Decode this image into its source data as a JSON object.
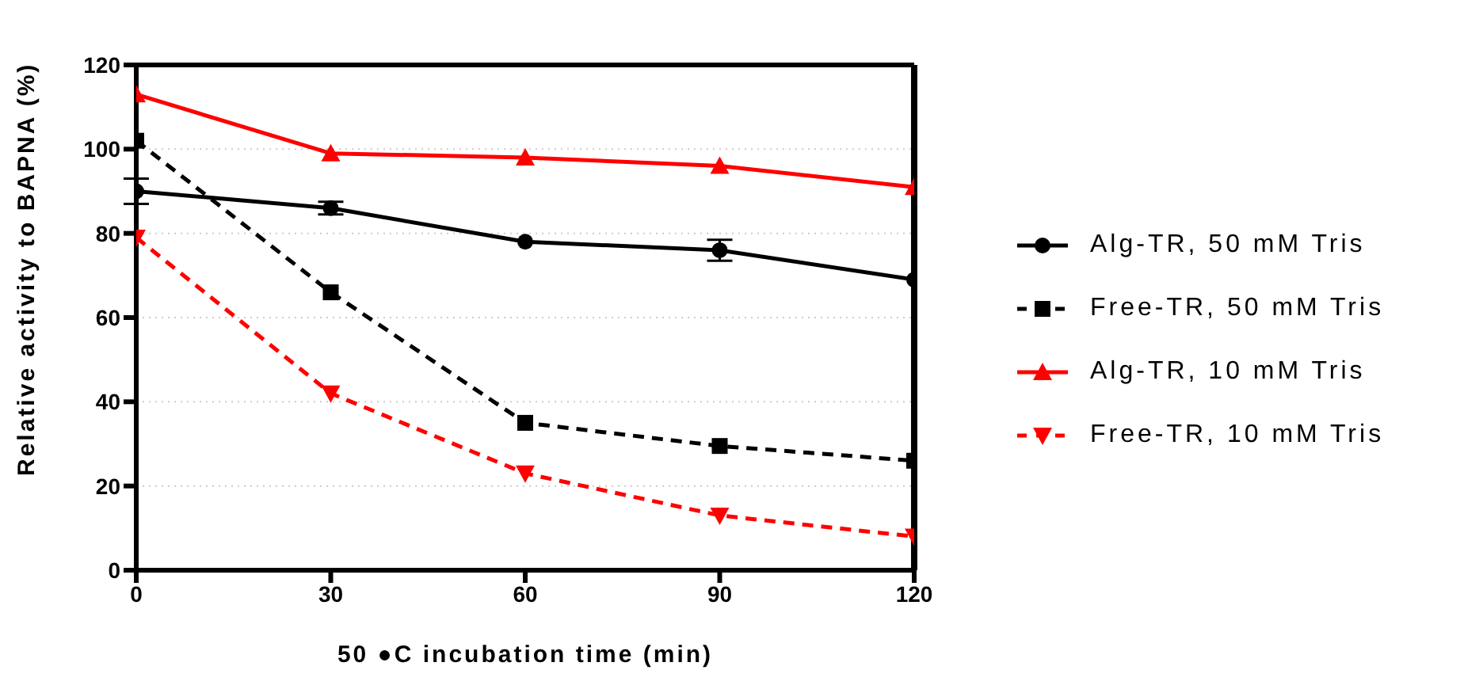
{
  "chart_data": {
    "type": "line",
    "xlabel": "50 ●C incubation time (min)",
    "ylabel": "Relative activity to BAPNA (%)",
    "x": [
      0,
      30,
      60,
      90,
      120
    ],
    "xlim": [
      0,
      120
    ],
    "xticks": [
      0,
      30,
      60,
      90,
      120
    ],
    "ylim": [
      0,
      120
    ],
    "yticks": [
      0,
      20,
      40,
      60,
      80,
      100,
      120
    ],
    "grid": "y",
    "legend": "right",
    "series": [
      {
        "name": "Alg-TR, 50 mM Tris",
        "color": "#000000",
        "values": [
          90,
          86,
          78,
          76,
          69
        ],
        "errors": [
          3,
          1.5,
          null,
          2.5,
          null
        ],
        "marker": "circle",
        "line_style": "solid"
      },
      {
        "name": "Free-TR, 50 mM Tris",
        "color": "#000000",
        "values": [
          102,
          66,
          35,
          29.5,
          26
        ],
        "marker": "square",
        "line_style": "dashed"
      },
      {
        "name": "Alg-TR, 10 mM Tris",
        "color": "#ff0000",
        "values": [
          113,
          99,
          98,
          96,
          91
        ],
        "marker": "triangle",
        "line_style": "solid"
      },
      {
        "name": "Free-TR, 10 mM Tris",
        "color": "#ff0000",
        "values": [
          79,
          42,
          23,
          13,
          8
        ],
        "marker": "triangle-down",
        "line_style": "dashed"
      }
    ]
  }
}
